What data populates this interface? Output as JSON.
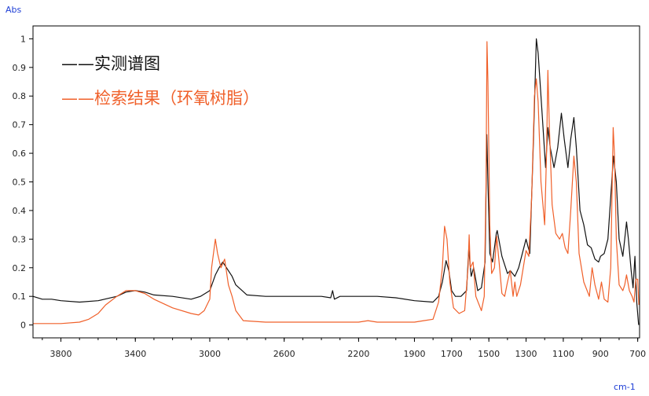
{
  "chart_data": {
    "type": "line",
    "xlabel": "cm-1",
    "ylabel": "Abs",
    "xlim": [
      3950,
      690
    ],
    "ylim": [
      -0.045,
      1.045
    ],
    "x_ticks": [
      "3800",
      "3400",
      "3000",
      "2600",
      "2200",
      "1900",
      "1700",
      "1500",
      "1300",
      "1100",
      "900",
      "700"
    ],
    "x_tick_values": [
      3800,
      3400,
      3000,
      2600,
      2200,
      1900,
      1700,
      1500,
      1300,
      1100,
      900,
      700
    ],
    "y_ticks": [
      "1",
      "0.9",
      "0.8",
      "0.7",
      "0.6",
      "0.5",
      "0.4",
      "0.3",
      "0.2",
      "0.1",
      "0"
    ],
    "y_tick_values": [
      1,
      0.9,
      0.8,
      0.7,
      0.6,
      0.5,
      0.4,
      0.3,
      0.2,
      0.1,
      0
    ],
    "grid": false,
    "legend_position": "top-left",
    "series": [
      {
        "name": "——实测谱图",
        "color": "#111111",
        "points": [
          [
            3950,
            0.1
          ],
          [
            3900,
            0.09
          ],
          [
            3850,
            0.09
          ],
          [
            3800,
            0.085
          ],
          [
            3700,
            0.08
          ],
          [
            3600,
            0.085
          ],
          [
            3500,
            0.1
          ],
          [
            3450,
            0.115
          ],
          [
            3400,
            0.12
          ],
          [
            3350,
            0.115
          ],
          [
            3300,
            0.105
          ],
          [
            3200,
            0.1
          ],
          [
            3100,
            0.09
          ],
          [
            3050,
            0.1
          ],
          [
            3000,
            0.12
          ],
          [
            2970,
            0.175
          ],
          [
            2950,
            0.2
          ],
          [
            2930,
            0.22
          ],
          [
            2910,
            0.2
          ],
          [
            2880,
            0.17
          ],
          [
            2860,
            0.14
          ],
          [
            2800,
            0.105
          ],
          [
            2700,
            0.1
          ],
          [
            2600,
            0.1
          ],
          [
            2500,
            0.1
          ],
          [
            2400,
            0.1
          ],
          [
            2350,
            0.095
          ],
          [
            2340,
            0.12
          ],
          [
            2330,
            0.09
          ],
          [
            2300,
            0.1
          ],
          [
            2200,
            0.1
          ],
          [
            2100,
            0.1
          ],
          [
            2000,
            0.095
          ],
          [
            1900,
            0.085
          ],
          [
            1800,
            0.08
          ],
          [
            1770,
            0.1
          ],
          [
            1750,
            0.15
          ],
          [
            1730,
            0.225
          ],
          [
            1715,
            0.19
          ],
          [
            1700,
            0.12
          ],
          [
            1680,
            0.1
          ],
          [
            1650,
            0.1
          ],
          [
            1620,
            0.12
          ],
          [
            1608,
            0.265
          ],
          [
            1595,
            0.17
          ],
          [
            1582,
            0.2
          ],
          [
            1560,
            0.12
          ],
          [
            1540,
            0.13
          ],
          [
            1520,
            0.22
          ],
          [
            1511,
            0.665
          ],
          [
            1505,
            0.5
          ],
          [
            1495,
            0.25
          ],
          [
            1480,
            0.22
          ],
          [
            1460,
            0.32
          ],
          [
            1455,
            0.33
          ],
          [
            1430,
            0.24
          ],
          [
            1400,
            0.18
          ],
          [
            1385,
            0.19
          ],
          [
            1360,
            0.17
          ],
          [
            1340,
            0.2
          ],
          [
            1300,
            0.3
          ],
          [
            1280,
            0.25
          ],
          [
            1260,
            0.65
          ],
          [
            1245,
            1.0
          ],
          [
            1235,
            0.95
          ],
          [
            1215,
            0.75
          ],
          [
            1195,
            0.55
          ],
          [
            1183,
            0.69
          ],
          [
            1170,
            0.62
          ],
          [
            1150,
            0.55
          ],
          [
            1130,
            0.62
          ],
          [
            1110,
            0.74
          ],
          [
            1095,
            0.65
          ],
          [
            1075,
            0.55
          ],
          [
            1060,
            0.65
          ],
          [
            1043,
            0.725
          ],
          [
            1030,
            0.62
          ],
          [
            1010,
            0.4
          ],
          [
            990,
            0.35
          ],
          [
            970,
            0.28
          ],
          [
            950,
            0.27
          ],
          [
            930,
            0.23
          ],
          [
            910,
            0.22
          ],
          [
            900,
            0.24
          ],
          [
            880,
            0.25
          ],
          [
            860,
            0.3
          ],
          [
            830,
            0.59
          ],
          [
            815,
            0.5
          ],
          [
            800,
            0.3
          ],
          [
            780,
            0.24
          ],
          [
            770,
            0.3
          ],
          [
            760,
            0.36
          ],
          [
            750,
            0.3
          ],
          [
            735,
            0.19
          ],
          [
            725,
            0.13
          ],
          [
            715,
            0.24
          ],
          [
            705,
            0.08
          ],
          [
            695,
            0.0
          ]
        ]
      },
      {
        "name": "——检索结果（环氧树脂）",
        "color": "#f0602a",
        "points": [
          [
            3950,
            0.005
          ],
          [
            3900,
            0.005
          ],
          [
            3800,
            0.005
          ],
          [
            3700,
            0.01
          ],
          [
            3650,
            0.02
          ],
          [
            3600,
            0.04
          ],
          [
            3560,
            0.07
          ],
          [
            3500,
            0.1
          ],
          [
            3450,
            0.12
          ],
          [
            3400,
            0.12
          ],
          [
            3350,
            0.11
          ],
          [
            3300,
            0.09
          ],
          [
            3200,
            0.06
          ],
          [
            3100,
            0.04
          ],
          [
            3060,
            0.035
          ],
          [
            3030,
            0.05
          ],
          [
            3000,
            0.09
          ],
          [
            2990,
            0.2
          ],
          [
            2970,
            0.3
          ],
          [
            2958,
            0.25
          ],
          [
            2940,
            0.2
          ],
          [
            2920,
            0.23
          ],
          [
            2900,
            0.14
          ],
          [
            2880,
            0.1
          ],
          [
            2860,
            0.05
          ],
          [
            2820,
            0.015
          ],
          [
            2700,
            0.01
          ],
          [
            2500,
            0.01
          ],
          [
            2300,
            0.01
          ],
          [
            2200,
            0.01
          ],
          [
            2150,
            0.015
          ],
          [
            2100,
            0.01
          ],
          [
            2000,
            0.01
          ],
          [
            1900,
            0.01
          ],
          [
            1850,
            0.015
          ],
          [
            1800,
            0.02
          ],
          [
            1770,
            0.08
          ],
          [
            1750,
            0.2
          ],
          [
            1738,
            0.345
          ],
          [
            1725,
            0.3
          ],
          [
            1710,
            0.15
          ],
          [
            1690,
            0.06
          ],
          [
            1660,
            0.04
          ],
          [
            1630,
            0.05
          ],
          [
            1612,
            0.2
          ],
          [
            1606,
            0.315
          ],
          [
            1600,
            0.2
          ],
          [
            1585,
            0.22
          ],
          [
            1570,
            0.1
          ],
          [
            1540,
            0.05
          ],
          [
            1525,
            0.1
          ],
          [
            1515,
            0.5
          ],
          [
            1510,
            0.99
          ],
          [
            1505,
            0.85
          ],
          [
            1495,
            0.35
          ],
          [
            1485,
            0.18
          ],
          [
            1470,
            0.2
          ],
          [
            1458,
            0.31
          ],
          [
            1445,
            0.22
          ],
          [
            1430,
            0.11
          ],
          [
            1415,
            0.1
          ],
          [
            1400,
            0.15
          ],
          [
            1385,
            0.19
          ],
          [
            1370,
            0.1
          ],
          [
            1360,
            0.15
          ],
          [
            1350,
            0.1
          ],
          [
            1330,
            0.14
          ],
          [
            1300,
            0.26
          ],
          [
            1285,
            0.24
          ],
          [
            1270,
            0.45
          ],
          [
            1255,
            0.8
          ],
          [
            1245,
            0.86
          ],
          [
            1235,
            0.78
          ],
          [
            1220,
            0.5
          ],
          [
            1200,
            0.35
          ],
          [
            1190,
            0.6
          ],
          [
            1183,
            0.89
          ],
          [
            1175,
            0.7
          ],
          [
            1160,
            0.42
          ],
          [
            1140,
            0.32
          ],
          [
            1120,
            0.3
          ],
          [
            1105,
            0.32
          ],
          [
            1090,
            0.27
          ],
          [
            1075,
            0.25
          ],
          [
            1060,
            0.4
          ],
          [
            1043,
            0.59
          ],
          [
            1030,
            0.5
          ],
          [
            1015,
            0.25
          ],
          [
            990,
            0.15
          ],
          [
            960,
            0.1
          ],
          [
            945,
            0.2
          ],
          [
            930,
            0.14
          ],
          [
            910,
            0.09
          ],
          [
            895,
            0.15
          ],
          [
            880,
            0.09
          ],
          [
            860,
            0.08
          ],
          [
            845,
            0.2
          ],
          [
            832,
            0.69
          ],
          [
            825,
            0.6
          ],
          [
            815,
            0.3
          ],
          [
            800,
            0.14
          ],
          [
            780,
            0.12
          ],
          [
            770,
            0.14
          ],
          [
            760,
            0.175
          ],
          [
            745,
            0.12
          ],
          [
            730,
            0.1
          ],
          [
            720,
            0.08
          ],
          [
            710,
            0.16
          ],
          [
            700,
            0.16
          ],
          [
            694,
            0.07
          ]
        ]
      }
    ]
  }
}
